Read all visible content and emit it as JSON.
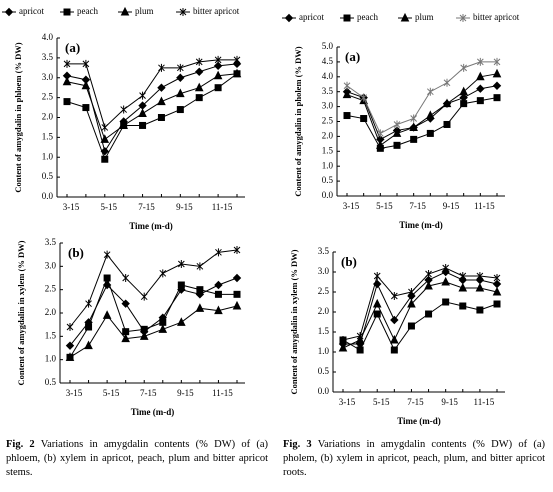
{
  "chart_data": [
    {
      "type": "line",
      "title": "(a)",
      "x_label": "Time (m-d)",
      "y_label": "Content of amygdalin in phloem (% DW)",
      "categories": [
        "3-15",
        null,
        "5-15",
        null,
        "7-15",
        null,
        "9-15",
        null,
        "11-15",
        null
      ],
      "ylim": [
        0,
        4
      ],
      "yticks": [
        {
          "value": 0,
          "label": "0.0"
        },
        0.5,
        {
          "value": 1,
          "label": "1.0"
        },
        1.5,
        {
          "value": 2,
          "label": "2.0"
        },
        2.5,
        {
          "value": 3,
          "label": "3.0"
        },
        3.5,
        {
          "value": 4,
          "label": "4.0"
        }
      ],
      "legend": true,
      "series": [
        {
          "name": "apricot",
          "color": "#000000",
          "values": [
            3.05,
            2.95,
            1.15,
            1.9,
            2.3,
            2.75,
            3.0,
            3.15,
            3.3,
            3.35
          ]
        },
        {
          "name": "peach",
          "color": "#000000",
          "values": [
            2.4,
            2.25,
            0.95,
            1.8,
            1.8,
            2.0,
            2.2,
            2.5,
            2.75,
            3.1
          ]
        },
        {
          "name": "plum",
          "color": "#000000",
          "values": [
            2.9,
            2.8,
            1.45,
            1.8,
            2.1,
            2.4,
            2.6,
            2.75,
            3.05,
            3.1
          ]
        },
        {
          "name": "bitter apricot",
          "color": "#000000",
          "values": [
            3.35,
            3.35,
            1.75,
            2.2,
            2.55,
            3.25,
            3.25,
            3.4,
            3.45,
            3.45
          ]
        }
      ]
    },
    {
      "type": "line",
      "title": "(b)",
      "x_label": "Time (m-d)",
      "y_label": "Content of amygdalin in xylem (% DW)",
      "categories": [
        "3-15",
        null,
        "5-15",
        null,
        "7-15",
        null,
        "9-15",
        null,
        "11-15",
        null
      ],
      "ylim": [
        0.5,
        3.5
      ],
      "yticks": [
        0.5,
        {
          "value": 1,
          "label": "1.0"
        },
        1.5,
        {
          "value": 2,
          "label": "2.0"
        },
        2.5,
        {
          "value": 3,
          "label": "3.0"
        },
        3.5
      ],
      "legend": false,
      "series": [
        {
          "color": "#000000",
          "values": [
            1.3,
            1.8,
            2.6,
            2.2,
            1.6,
            1.9,
            2.5,
            2.4,
            2.6,
            2.75
          ]
        },
        {
          "color": "#000000",
          "values": [
            1.05,
            1.7,
            2.75,
            1.6,
            1.65,
            1.8,
            2.6,
            2.5,
            2.4,
            2.4
          ]
        },
        {
          "color": "#000000",
          "values": [
            1.05,
            1.3,
            1.95,
            1.45,
            1.5,
            1.65,
            1.8,
            2.1,
            2.05,
            2.15
          ]
        },
        {
          "color": "#000000",
          "values": [
            1.7,
            2.2,
            3.25,
            2.75,
            2.35,
            2.85,
            3.05,
            3.0,
            3.3,
            3.35
          ]
        }
      ]
    },
    {
      "type": "line",
      "title": "(a)",
      "x_label": "Time (m-d)",
      "y_label": "Content of amygdalin in pholem (% DW)",
      "categories": [
        "3-15",
        null,
        "5-15",
        null,
        "7-15",
        null,
        "9-15",
        null,
        "11-15",
        null
      ],
      "ylim": [
        0,
        5
      ],
      "yticks": [
        {
          "value": 0,
          "label": "0.0"
        },
        0.5,
        {
          "value": 1,
          "label": "1.0"
        },
        1.5,
        {
          "value": 2,
          "label": "2.0"
        },
        2.5,
        {
          "value": 3,
          "label": "3.0"
        },
        3.5,
        {
          "value": 4,
          "label": "4.0"
        },
        4.5,
        {
          "value": 5,
          "label": "5.0"
        }
      ],
      "legend": true,
      "series": [
        {
          "name": "apricot",
          "color": "#000000",
          "values": [
            3.5,
            3.3,
            1.9,
            2.2,
            2.3,
            2.6,
            3.1,
            3.3,
            3.6,
            3.7
          ]
        },
        {
          "name": "peach",
          "color": "#000000",
          "values": [
            2.7,
            2.6,
            1.6,
            1.7,
            1.9,
            2.1,
            2.4,
            3.1,
            3.2,
            3.3
          ]
        },
        {
          "name": "plum",
          "color": "#000000",
          "values": [
            3.4,
            3.2,
            1.7,
            2.1,
            2.3,
            2.7,
            3.1,
            3.5,
            4.0,
            4.1
          ]
        },
        {
          "name": "bitter apricot",
          "color": "#777777",
          "values": [
            3.7,
            3.3,
            2.1,
            2.4,
            2.6,
            3.5,
            3.8,
            4.3,
            4.5,
            4.5
          ]
        }
      ]
    },
    {
      "type": "line",
      "title": "(b)",
      "x_label": "Time (m-d)",
      "y_label": "Content of amygdalin in xylem (% DW)",
      "categories": [
        "3-15",
        null,
        "5-15",
        null,
        "7-15",
        null,
        "9-15",
        null,
        "11-15",
        null
      ],
      "ylim": [
        0,
        3.5
      ],
      "yticks": [
        {
          "value": 0,
          "label": "0.0"
        },
        0.5,
        {
          "value": 1,
          "label": "1.0"
        },
        1.5,
        {
          "value": 2,
          "label": "2.0"
        },
        2.5,
        {
          "value": 3,
          "label": "3.0"
        },
        3.5
      ],
      "legend": false,
      "series": [
        {
          "color": "#000000",
          "values": [
            1.2,
            1.2,
            2.7,
            1.8,
            2.4,
            2.8,
            3.0,
            2.8,
            2.8,
            2.7
          ]
        },
        {
          "color": "#000000",
          "values": [
            1.3,
            1.05,
            1.95,
            1.05,
            1.65,
            1.95,
            2.25,
            2.15,
            2.05,
            2.2
          ]
        },
        {
          "color": "#000000",
          "values": [
            1.1,
            1.3,
            2.2,
            1.3,
            2.2,
            2.65,
            2.75,
            2.6,
            2.6,
            2.5
          ]
        },
        {
          "color": "#000000",
          "values": [
            1.3,
            1.4,
            2.9,
            2.4,
            2.5,
            2.95,
            3.1,
            2.9,
            2.9,
            2.85
          ]
        }
      ]
    }
  ],
  "captions": [
    {
      "label": "Fig. 2",
      "text": "Variations in amygdalin contents (% DW) of (a) phloem, (b) xylem in apricot, peach, plum and bitter apricot stems."
    },
    {
      "label": "Fig. 3",
      "text": "Variations in amygdalin contents (% DW) of (a) pholem, (b) xylem in apricot, peach, plum, and bitter apricot roots."
    }
  ]
}
